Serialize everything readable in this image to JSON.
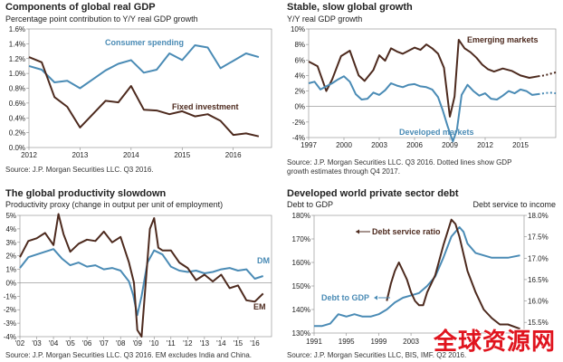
{
  "panels": [
    {
      "title": "Components of global real GDP",
      "subtitle": "Percentage point contribution  to Y/Y real GDP growth",
      "source": "Source: J.P. Morgan Securities LLC. Q3 2016.",
      "source2": ""
    },
    {
      "title": "Stable, slow global growth",
      "subtitle": "Y/Y real GDP growth",
      "source": "Source: J.P. Morgan Securities LLC. Q3 2016. Dotted lines show GDP",
      "source2": "growth estimates through Q4 2017."
    },
    {
      "title": "The global productivity slowdown",
      "subtitle": "Productivity proxy (change in output per unit of employment)",
      "source": "Source: J.P. Morgan Securities LLC. Q3 2016. EM excludes India and China.",
      "source2": ""
    },
    {
      "title": "Developed world private sector debt",
      "subtitle_left": "Debt to GDP",
      "subtitle_right": "Debt service to income",
      "source": "Source: J.P. Morgan Securities LLC, BIS, IMF. Q2 2016.",
      "source2": ""
    }
  ],
  "watermark": "全球资源网",
  "chart_data": [
    {
      "type": "line",
      "title": "Components of global real GDP",
      "ylim": [
        0,
        1.6
      ],
      "yticks": [
        "0.0%",
        "0.2%",
        "0.4%",
        "0.6%",
        "0.8%",
        "1.0%",
        "1.2%",
        "1.4%",
        "1.6%"
      ],
      "xlim": [
        2012,
        2016.75
      ],
      "xticks": [
        "2012",
        "2013",
        "2014",
        "2015",
        "2016"
      ],
      "series": [
        {
          "name": "Consumer spending",
          "color": "#4a8bb5",
          "x": [
            2012,
            2012.25,
            2012.5,
            2012.75,
            2013,
            2013.25,
            2013.5,
            2013.75,
            2014,
            2014.25,
            2014.5,
            2014.75,
            2015,
            2015.25,
            2015.5,
            2015.75,
            2016,
            2016.25,
            2016.5
          ],
          "values": [
            1.1,
            1.05,
            0.88,
            0.9,
            0.8,
            0.92,
            1.04,
            1.13,
            1.18,
            1.01,
            1.05,
            1.27,
            1.18,
            1.38,
            1.35,
            1.07,
            1.17,
            1.27,
            1.22
          ]
        },
        {
          "name": "Fixed investment",
          "color": "#4d2a1e",
          "x": [
            2012,
            2012.25,
            2012.5,
            2012.75,
            2013,
            2013.25,
            2013.5,
            2013.75,
            2014,
            2014.25,
            2014.5,
            2014.75,
            2015,
            2015.25,
            2015.5,
            2015.75,
            2016,
            2016.25,
            2016.5
          ],
          "values": [
            1.22,
            1.15,
            0.68,
            0.55,
            0.27,
            0.45,
            0.63,
            0.61,
            0.83,
            0.51,
            0.5,
            0.45,
            0.49,
            0.42,
            0.45,
            0.36,
            0.17,
            0.19,
            0.15
          ]
        }
      ]
    },
    {
      "type": "line",
      "title": "Stable, slow global growth",
      "ylim": [
        -4,
        10
      ],
      "yticks": [
        "-4%",
        "-2%",
        "0%",
        "2%",
        "4%",
        "6%",
        "8%",
        "10%"
      ],
      "xlim": [
        1997,
        2018
      ],
      "xticks": [
        "1997",
        "2000",
        "2003",
        "2006",
        "2009",
        "2012",
        "2015"
      ],
      "annotations": [
        "Emerging markets",
        "Developed markets"
      ],
      "series": [
        {
          "name": "Emerging markets",
          "color": "#4d2a1e",
          "x": [
            1997,
            1997.75,
            1998.5,
            1999,
            1999.75,
            2000.5,
            2001.25,
            2001.75,
            2002.5,
            2003,
            2003.5,
            2004,
            2004.5,
            2005,
            2005.5,
            2006,
            2006.5,
            2007,
            2007.5,
            2008,
            2008.5,
            2009,
            2009.4,
            2009.75,
            2010.25,
            2010.75,
            2011.25,
            2011.75,
            2012.25,
            2012.75,
            2013.5,
            2014.25,
            2015,
            2015.75,
            2016.5
          ],
          "values": [
            5.8,
            5.2,
            2.0,
            3.5,
            6.5,
            7.2,
            4.0,
            3.3,
            4.7,
            6.6,
            5.9,
            7.5,
            7.1,
            6.8,
            7.2,
            7.6,
            7.3,
            8.0,
            7.5,
            6.8,
            5.0,
            -1.3,
            1.3,
            8.6,
            7.5,
            7.0,
            6.3,
            5.4,
            4.8,
            4.5,
            4.9,
            4.6,
            4.0,
            3.7,
            3.9
          ],
          "projection": {
            "x": [
              2016.5,
              2017,
              2017.5,
              2018
            ],
            "values": [
              3.9,
              4.0,
              4.2,
              4.4
            ]
          }
        },
        {
          "name": "Developed markets",
          "color": "#4a8bb5",
          "x": [
            1997,
            1997.5,
            1998,
            1998.5,
            1999,
            1999.5,
            2000,
            2000.5,
            2001,
            2001.5,
            2002,
            2002.5,
            2003,
            2003.5,
            2004,
            2004.5,
            2005,
            2005.5,
            2006,
            2006.5,
            2007,
            2007.5,
            2008,
            2008.4,
            2008.8,
            2009.25,
            2009.6,
            2010,
            2010.5,
            2011,
            2011.5,
            2012,
            2012.5,
            2013,
            2013.5,
            2014,
            2014.5,
            2015,
            2015.5,
            2016,
            2016.5
          ],
          "values": [
            3.0,
            3.2,
            2.2,
            2.6,
            3.0,
            3.5,
            3.9,
            3.2,
            1.6,
            0.9,
            1.0,
            1.8,
            1.5,
            2.1,
            3.0,
            2.7,
            2.5,
            2.8,
            2.9,
            2.6,
            2.5,
            2.2,
            1.2,
            -0.5,
            -2.5,
            -4.5,
            -3.0,
            1.5,
            2.8,
            2.0,
            1.4,
            1.7,
            1.0,
            0.9,
            1.4,
            2.0,
            1.7,
            2.2,
            2.0,
            1.5,
            1.6
          ],
          "projection": {
            "x": [
              2016.5,
              2017,
              2017.5,
              2018
            ],
            "values": [
              1.6,
              1.7,
              1.8,
              1.7
            ]
          }
        }
      ]
    },
    {
      "type": "line",
      "title": "The global productivity slowdown",
      "ylim": [
        -4,
        5
      ],
      "yticks": [
        "-4%",
        "-3%",
        "-2%",
        "-1%",
        "0%",
        "1%",
        "2%",
        "3%",
        "4%",
        "5%"
      ],
      "xlim": [
        2002,
        2017
      ],
      "xticks": [
        "'02",
        "'03",
        "'04",
        "'05",
        "'06",
        "'07",
        "'08",
        "'09",
        "'10",
        "'11",
        "'12",
        "'13",
        "'14",
        "'15",
        "'16"
      ],
      "series": [
        {
          "name": "DM",
          "color": "#4a8bb5",
          "x": [
            2002,
            2002.5,
            2003,
            2003.5,
            2004,
            2004.5,
            2005,
            2005.5,
            2006,
            2006.5,
            2007,
            2007.5,
            2008,
            2008.5,
            2008.75,
            2009,
            2009.25,
            2009.6,
            2010,
            2010.5,
            2011,
            2011.5,
            2012,
            2012.5,
            2013,
            2013.5,
            2014,
            2014.5,
            2015,
            2015.5,
            2016,
            2016.5
          ],
          "values": [
            1.1,
            1.9,
            2.1,
            2.3,
            2.5,
            1.8,
            1.3,
            1.5,
            1.2,
            1.3,
            1.0,
            1.1,
            0.9,
            0.1,
            -0.9,
            -2.4,
            -1.0,
            1.5,
            2.4,
            2.1,
            1.2,
            0.9,
            0.8,
            0.9,
            0.7,
            0.8,
            1.0,
            1.1,
            0.9,
            1.0,
            0.3,
            0.5
          ]
        },
        {
          "name": "EM",
          "color": "#4d2a1e",
          "x": [
            2002,
            2002.5,
            2003,
            2003.5,
            2004,
            2004.3,
            2004.6,
            2005,
            2005.5,
            2006,
            2006.5,
            2007,
            2007.5,
            2008,
            2008.5,
            2008.8,
            2009,
            2009.25,
            2009.5,
            2009.75,
            2010,
            2010.25,
            2010.5,
            2011,
            2011.5,
            2012,
            2012.5,
            2013,
            2013.5,
            2014,
            2014.5,
            2015,
            2015.5,
            2016,
            2016.5
          ],
          "values": [
            1.9,
            3.1,
            3.3,
            3.7,
            2.8,
            5.1,
            3.6,
            2.3,
            2.9,
            3.2,
            3.1,
            3.8,
            3.0,
            3.4,
            1.5,
            0.0,
            -3.5,
            -4.0,
            0.0,
            4.0,
            4.8,
            2.6,
            2.4,
            2.4,
            1.5,
            1.1,
            0.2,
            0.6,
            0.1,
            0.6,
            -0.4,
            -0.2,
            -1.3,
            -1.4,
            -0.8
          ]
        }
      ]
    },
    {
      "type": "line",
      "title": "Developed world private sector debt",
      "ylabel": "Debt to GDP",
      "ylabel_right": "Debt service to income",
      "ylim": [
        130,
        180
      ],
      "yticks": [
        "130%",
        "140%",
        "150%",
        "160%",
        "170%",
        "180%"
      ],
      "ylim_right": [
        15.25,
        18.0
      ],
      "yticks_right": [
        "15.5%",
        "16.0%",
        "16.5%",
        "17.0%",
        "17.5%",
        "18.0%"
      ],
      "xlim": [
        1991,
        2017
      ],
      "xticks": [
        "1991",
        "1995",
        "1999",
        "2003"
      ],
      "annotations": [
        "Debt service ratio",
        "Debt to GDP"
      ],
      "series": [
        {
          "name": "Debt to GDP",
          "color": "#4a8bb5",
          "x": [
            1991,
            1992,
            1993,
            1994,
            1995,
            1996,
            1997,
            1998,
            1999,
            2000,
            2001,
            2002,
            2003,
            2004,
            2005,
            2006,
            2007,
            2008,
            2009,
            2009.5,
            2010,
            2011,
            2012,
            2013,
            2014,
            2015,
            2016.5
          ],
          "values": [
            133,
            133,
            134,
            138,
            137,
            138,
            137,
            137,
            138,
            140,
            143,
            145,
            146,
            147,
            150,
            154,
            162,
            171,
            175,
            173,
            168,
            164,
            163,
            162,
            162,
            162,
            163
          ]
        },
        {
          "name": "Debt service ratio",
          "color": "#4d2a1e",
          "axis": "right",
          "x": [
            2000,
            2000.5,
            2001,
            2001.5,
            2002,
            2002.5,
            2003,
            2003.5,
            2004,
            2004.5,
            2005,
            2006,
            2007,
            2008,
            2008.5,
            2009,
            2010,
            2011,
            2012,
            2013,
            2014,
            2015,
            2016.5
          ],
          "values": [
            16.0,
            16.4,
            16.7,
            16.9,
            16.7,
            16.5,
            16.2,
            16.0,
            15.9,
            15.9,
            16.2,
            16.6,
            17.3,
            17.9,
            17.8,
            17.5,
            16.7,
            16.2,
            15.8,
            15.6,
            15.45,
            15.45,
            15.35
          ]
        }
      ]
    }
  ]
}
